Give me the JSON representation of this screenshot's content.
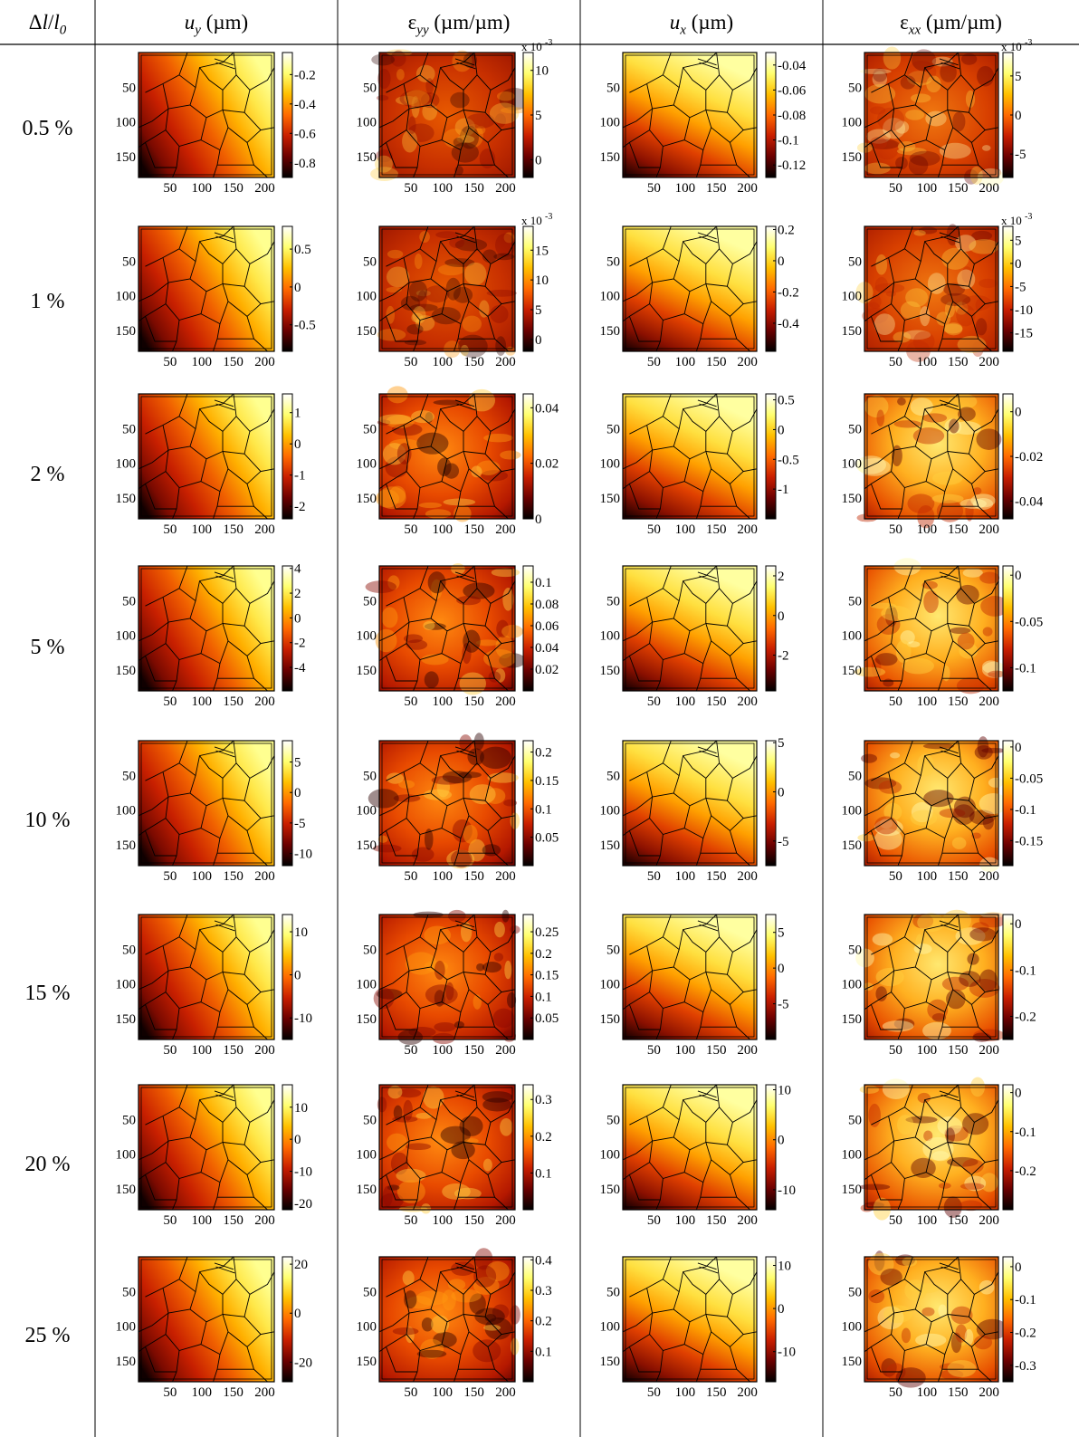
{
  "table": {
    "corner": {
      "prefix": "Δ",
      "var": "l",
      "slash": "/",
      "var2": "l",
      "sub": "0"
    },
    "columns": [
      {
        "sym": "u",
        "sub": "y",
        "unit": " (µm)",
        "greek": false
      },
      {
        "sym": "ε",
        "sub": "yy",
        "unit": " (µm/µm)",
        "greek": true
      },
      {
        "sym": "u",
        "sub": "x",
        "unit": " (µm)",
        "greek": false
      },
      {
        "sym": "ε",
        "sub": "xx",
        "unit": " (µm/µm)",
        "greek": true
      }
    ],
    "rows": [
      "0.5 %",
      "1 %",
      "2 %",
      "5 %",
      "10 %",
      "15 %",
      "20 %",
      "25 %"
    ]
  },
  "chart_data": {
    "type": "heatmap",
    "description_axes": {
      "x_ticks": [
        "50",
        "100",
        "150",
        "200"
      ],
      "y_ticks": [
        "50",
        "100",
        "150"
      ],
      "x_range": [
        0,
        215
      ],
      "y_range": [
        0,
        180
      ]
    },
    "colormap": [
      "#000000",
      "#6b0000",
      "#c81e00",
      "#ff6a00",
      "#ffc000",
      "#ffff70",
      "#ffffff"
    ],
    "panels": [
      [
        {
          "field": "u_y",
          "ticks": [
            "-0.2",
            "-0.4",
            "-0.6",
            "-0.8"
          ],
          "range": [
            -0.9,
            -0.05
          ]
        },
        {
          "field": "eps_yy",
          "ticks": [
            "10",
            "5",
            "0"
          ],
          "range": [
            -2,
            12
          ],
          "multiplier": "x 10",
          "exp": "-3"
        },
        {
          "field": "u_x",
          "ticks": [
            "-0.04",
            "-0.06",
            "-0.08",
            "-0.1",
            "-0.12"
          ],
          "range": [
            -0.13,
            -0.03
          ]
        },
        {
          "field": "eps_xx",
          "ticks": [
            "5",
            "0",
            "-5"
          ],
          "range": [
            -8,
            8
          ],
          "multiplier": "x 10",
          "exp": "-3"
        }
      ],
      [
        {
          "field": "u_y",
          "ticks": [
            "0.5",
            "0",
            "-0.5"
          ],
          "range": [
            -0.85,
            0.8
          ]
        },
        {
          "field": "eps_yy",
          "ticks": [
            "15",
            "10",
            "5",
            "0"
          ],
          "range": [
            -2,
            19
          ],
          "multiplier": "x 10",
          "exp": "-3"
        },
        {
          "field": "u_x",
          "ticks": [
            "0.2",
            "0",
            "-0.2",
            "-0.4"
          ],
          "range": [
            -0.58,
            0.22
          ]
        },
        {
          "field": "eps_xx",
          "ticks": [
            "5",
            "0",
            "-5",
            "-10",
            "-15"
          ],
          "range": [
            -19,
            8
          ],
          "multiplier": "x 10",
          "exp": "-3"
        }
      ],
      [
        {
          "field": "u_y",
          "ticks": [
            "1",
            "0",
            "-1",
            "-2"
          ],
          "range": [
            -2.4,
            1.6
          ]
        },
        {
          "field": "eps_yy",
          "ticks": [
            "0.04",
            "0.02",
            "0"
          ],
          "range": [
            0,
            0.045
          ]
        },
        {
          "field": "u_x",
          "ticks": [
            "0.5",
            "0",
            "-0.5",
            "-1"
          ],
          "range": [
            -1.5,
            0.6
          ]
        },
        {
          "field": "eps_xx",
          "ticks": [
            "0",
            "-0.02",
            "-0.04"
          ],
          "range": [
            -0.048,
            0.008
          ]
        }
      ],
      [
        {
          "field": "u_y",
          "ticks": [
            "4",
            "2",
            "0",
            "-2",
            "-4"
          ],
          "range": [
            -5.9,
            4.2
          ]
        },
        {
          "field": "eps_yy",
          "ticks": [
            "0.1",
            "0.08",
            "0.06",
            "0.04",
            "0.02"
          ],
          "range": [
            0,
            0.115
          ]
        },
        {
          "field": "u_x",
          "ticks": [
            "2",
            "0",
            "-2"
          ],
          "range": [
            -3.8,
            2.5
          ]
        },
        {
          "field": "eps_xx",
          "ticks": [
            "0",
            "-0.05",
            "-0.1"
          ],
          "range": [
            -0.125,
            0.01
          ]
        }
      ],
      [
        {
          "field": "u_y",
          "ticks": [
            "5",
            "0",
            "-5",
            "-10"
          ],
          "range": [
            -12,
            8.5
          ]
        },
        {
          "field": "eps_yy",
          "ticks": [
            "0.2",
            "0.15",
            "0.1",
            "0.05"
          ],
          "range": [
            0,
            0.22
          ]
        },
        {
          "field": "u_x",
          "ticks": [
            "5",
            "0",
            "-5"
          ],
          "range": [
            -7.5,
            5.2
          ]
        },
        {
          "field": "eps_xx",
          "ticks": [
            "0",
            "-0.05",
            "-0.1",
            "-0.15"
          ],
          "range": [
            -0.19,
            0.01
          ]
        }
      ],
      [
        {
          "field": "u_y",
          "ticks": [
            "10",
            "0",
            "-10"
          ],
          "range": [
            -15,
            14
          ]
        },
        {
          "field": "eps_yy",
          "ticks": [
            "0.25",
            "0.2",
            "0.15",
            "0.1",
            "0.05"
          ],
          "range": [
            0,
            0.29
          ]
        },
        {
          "field": "u_x",
          "ticks": [
            "5",
            "0",
            "-5"
          ],
          "range": [
            -10,
            7.5
          ]
        },
        {
          "field": "eps_xx",
          "ticks": [
            "0",
            "-0.1",
            "-0.2"
          ],
          "range": [
            -0.25,
            0.02
          ]
        }
      ],
      [
        {
          "field": "u_y",
          "ticks": [
            "10",
            "0",
            "-10",
            "-20"
          ],
          "range": [
            -22,
            17
          ]
        },
        {
          "field": "eps_yy",
          "ticks": [
            "0.3",
            "0.2",
            "0.1"
          ],
          "range": [
            0,
            0.34
          ]
        },
        {
          "field": "u_x",
          "ticks": [
            "10",
            "0",
            "-10"
          ],
          "range": [
            -14,
            11
          ]
        },
        {
          "field": "eps_xx",
          "ticks": [
            "0",
            "-0.1",
            "-0.2"
          ],
          "range": [
            -0.3,
            0.02
          ]
        }
      ],
      [
        {
          "field": "u_y",
          "ticks": [
            "20",
            "0",
            "-20"
          ],
          "range": [
            -28,
            23
          ]
        },
        {
          "field": "eps_yy",
          "ticks": [
            "0.4",
            "0.3",
            "0.2",
            "0.1"
          ],
          "range": [
            0,
            0.41
          ]
        },
        {
          "field": "u_x",
          "ticks": [
            "10",
            "0",
            "-10"
          ],
          "range": [
            -17,
            12
          ]
        },
        {
          "field": "eps_xx",
          "ticks": [
            "0",
            "-0.1",
            "-0.2",
            "-0.3"
          ],
          "range": [
            -0.35,
            0.03
          ]
        }
      ]
    ]
  }
}
